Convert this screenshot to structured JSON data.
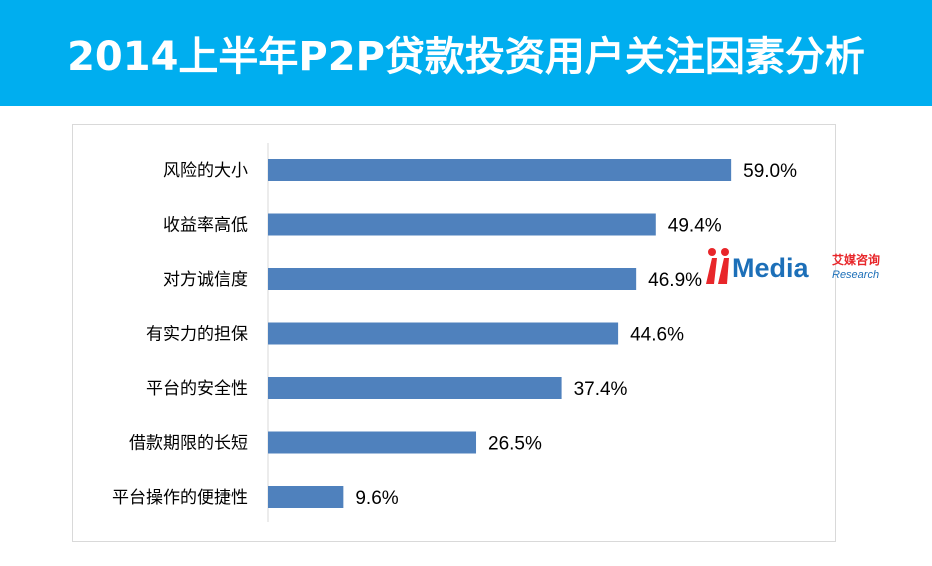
{
  "header": {
    "title": "2014上半年P2P贷款投资用户关注因素分析"
  },
  "colors": {
    "header_bg": "#00aeef",
    "bar": "#4f81bd",
    "logo_red": "#e8262a",
    "logo_blue": "#1c6fb8"
  },
  "chart_data": {
    "type": "bar",
    "orientation": "horizontal",
    "categories": [
      "风险的大小",
      "收益率高低",
      "对方诚信度",
      "有实力的担保",
      "平台的安全性",
      "借款期限的长短",
      "平台操作的便捷性"
    ],
    "values": [
      59.0,
      49.4,
      46.9,
      44.6,
      37.4,
      26.5,
      9.6
    ],
    "data_labels": [
      "59.0%",
      "49.4%",
      "46.9%",
      "44.6%",
      "37.4%",
      "26.5%",
      "9.6%"
    ],
    "unit": "%",
    "grid": false,
    "legend": "none"
  },
  "watermark": {
    "brand": "Media",
    "cn": "艾媒咨询",
    "en": "Research"
  }
}
